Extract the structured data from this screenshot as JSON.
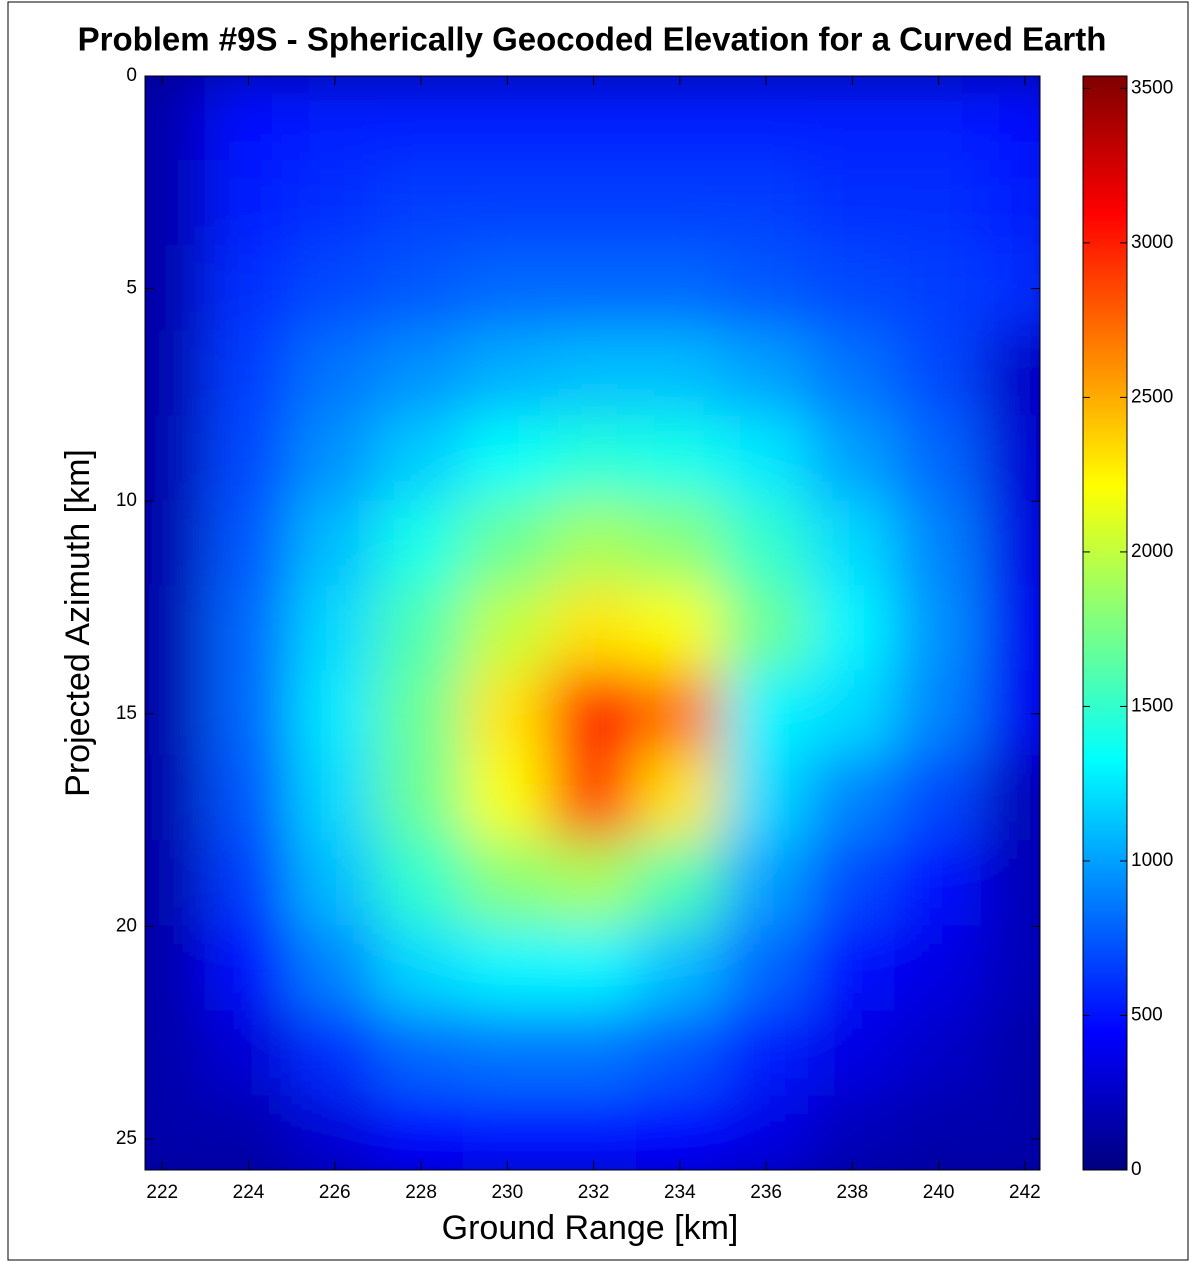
{
  "chart_data": {
    "type": "heatmap",
    "title": "Problem #9S - Spherically Geocoded Elevation for a Curved Earth",
    "x_label": "Ground Range [km]",
    "y_label": "Projected Azimuth [km]",
    "x": [
      222,
      224,
      226,
      228,
      230,
      232,
      234,
      236,
      238,
      240,
      242
    ],
    "y": [
      1,
      3,
      5,
      7,
      9,
      11,
      13,
      15,
      17,
      19,
      21,
      23,
      25
    ],
    "z": [
      [
        150,
        500,
        550,
        550,
        550,
        550,
        550,
        550,
        550,
        550,
        500
      ],
      [
        150,
        550,
        600,
        650,
        650,
        650,
        650,
        650,
        600,
        600,
        550
      ],
      [
        150,
        600,
        700,
        750,
        800,
        800,
        800,
        750,
        700,
        650,
        600
      ],
      [
        150,
        650,
        850,
        950,
        1050,
        1100,
        1100,
        1000,
        850,
        700,
        250
      ],
      [
        150,
        700,
        950,
        1150,
        1350,
        1450,
        1400,
        1250,
        1000,
        800,
        300
      ],
      [
        150,
        750,
        1100,
        1400,
        1700,
        1900,
        1800,
        1500,
        1200,
        900,
        350
      ],
      [
        150,
        800,
        1200,
        1600,
        2000,
        2300,
        2200,
        1700,
        1300,
        950,
        400
      ],
      [
        150,
        800,
        1250,
        1700,
        2300,
        3100,
        2700,
        1300,
        1200,
        900,
        400
      ],
      [
        150,
        750,
        1200,
        1700,
        2200,
        2900,
        2300,
        1200,
        900,
        700,
        200
      ],
      [
        150,
        650,
        1100,
        1500,
        1800,
        1900,
        1600,
        1000,
        700,
        500,
        200
      ],
      [
        150,
        500,
        900,
        1200,
        1300,
        1300,
        1100,
        800,
        500,
        350,
        200
      ],
      [
        150,
        300,
        600,
        800,
        850,
        850,
        750,
        550,
        350,
        250,
        150
      ],
      [
        150,
        150,
        300,
        450,
        500,
        500,
        450,
        350,
        200,
        150,
        150
      ]
    ],
    "xlim": [
      221.6,
      242.35
    ],
    "ylim": [
      0,
      25.73
    ],
    "y_reversed": true,
    "xticks": [
      222,
      224,
      226,
      228,
      230,
      232,
      234,
      236,
      238,
      240,
      242
    ],
    "yticks": [
      0,
      5,
      10,
      15,
      20,
      25
    ],
    "colormap": "jet",
    "clim": [
      0,
      3540
    ],
    "cticks": [
      0,
      500,
      1000,
      1500,
      2000,
      2500,
      3000,
      3500
    ]
  }
}
